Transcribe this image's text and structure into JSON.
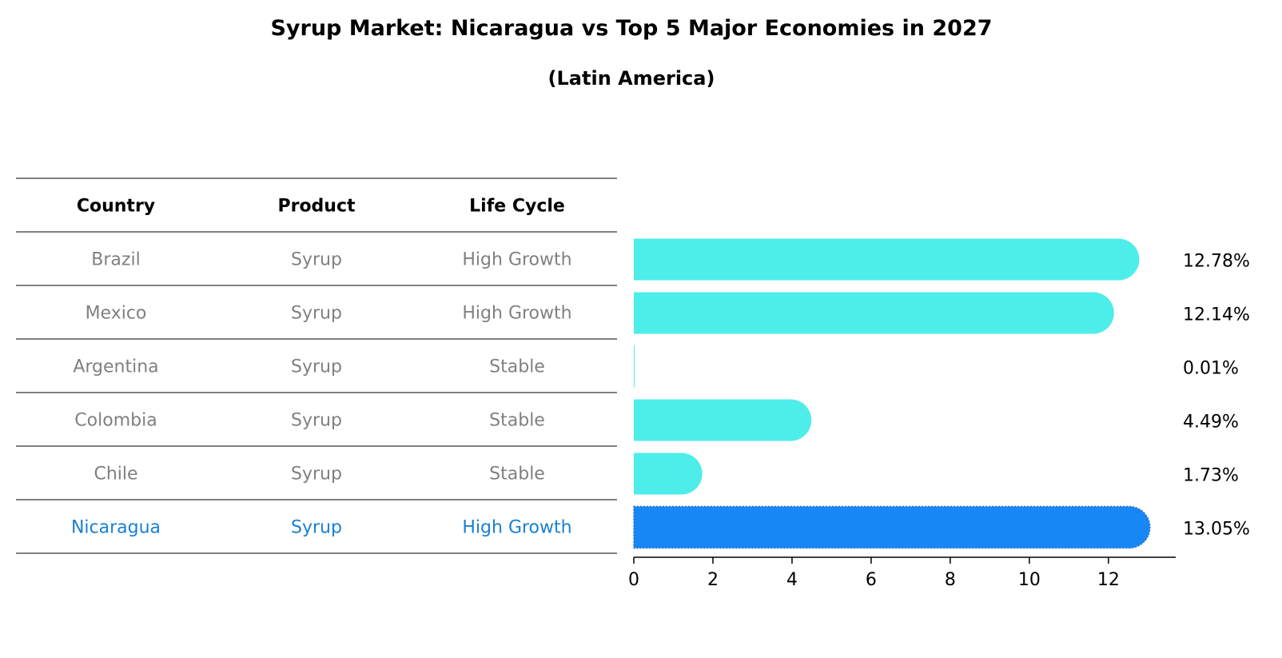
{
  "title": "Syrup Market: Nicaragua vs Top 5 Major Economies in 2027",
  "subtitle": "(Latin America)",
  "colors": {
    "bar": "#4dedea",
    "highlight_bar": "#1787f5",
    "table_text": "#808080",
    "highlight_text": "#1a80d0",
    "rule": "#000000"
  },
  "table": {
    "headers": [
      "Country",
      "Product",
      "Life Cycle"
    ],
    "rows": [
      {
        "country": "Brazil",
        "product": "Syrup",
        "life_cycle": "High Growth",
        "highlight": false
      },
      {
        "country": "Mexico",
        "product": "Syrup",
        "life_cycle": "High Growth",
        "highlight": false
      },
      {
        "country": "Argentina",
        "product": "Syrup",
        "life_cycle": "Stable",
        "highlight": false
      },
      {
        "country": "Colombia",
        "product": "Syrup",
        "life_cycle": "Stable",
        "highlight": false
      },
      {
        "country": "Chile",
        "product": "Syrup",
        "life_cycle": "Stable",
        "highlight": false
      },
      {
        "country": "Nicaragua",
        "product": "Syrup",
        "life_cycle": "High Growth",
        "highlight": true
      }
    ]
  },
  "chart_data": {
    "type": "bar",
    "orientation": "horizontal",
    "categories": [
      "Brazil",
      "Mexico",
      "Argentina",
      "Colombia",
      "Chile",
      "Nicaragua"
    ],
    "values": [
      12.78,
      12.14,
      0.01,
      4.49,
      1.73,
      13.05
    ],
    "value_labels": [
      "12.78%",
      "12.14%",
      "0.01%",
      "4.49%",
      "1.73%",
      "13.05%"
    ],
    "highlight": "Nicaragua",
    "xlim": [
      0,
      13.7
    ],
    "xticks": [
      0,
      2,
      4,
      6,
      8,
      10,
      12
    ],
    "title": "Syrup Market: Nicaragua vs Top 5 Major Economies in 2027",
    "subtitle": "(Latin America)",
    "xlabel": "",
    "ylabel": "",
    "grid": false,
    "legend": "none"
  }
}
